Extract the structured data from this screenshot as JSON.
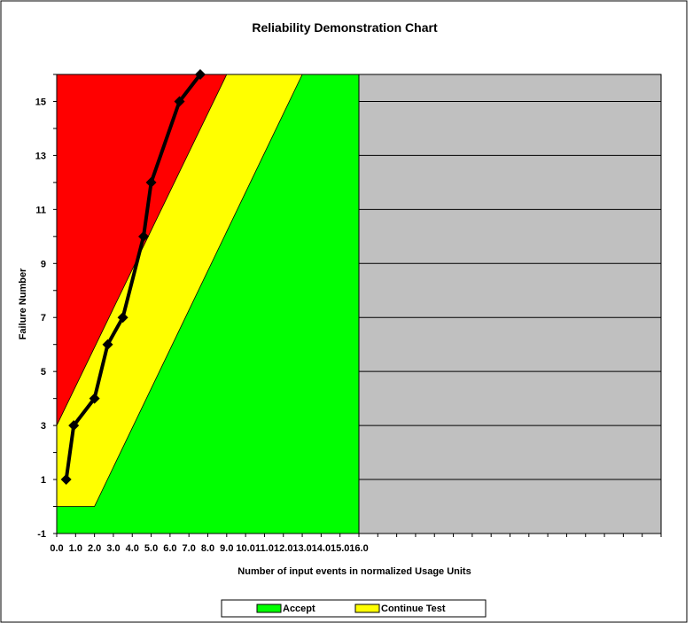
{
  "chart_data": {
    "type": "line",
    "title": "Reliability Demonstration Chart",
    "xlabel": "Number of input events in normalized Usage Units",
    "ylabel": "Failure Number",
    "xlim": [
      0,
      32
    ],
    "ylim": [
      -1,
      16
    ],
    "x_ticks": [
      "0.0",
      "1.0",
      "2.0",
      "3.0",
      "4.0",
      "5.0",
      "6.0",
      "7.0",
      "8.0",
      "9.0",
      "10.0",
      "11.0",
      "12.0",
      "13.0",
      "14.0",
      "15.0",
      "16.0"
    ],
    "y_ticks": [
      "-1",
      "1",
      "3",
      "5",
      "7",
      "9",
      "11",
      "13",
      "15"
    ],
    "regions": {
      "reject_color": "#ff0000",
      "continue_color": "#ffff00",
      "accept_color": "#00ff00",
      "empty_color": "#c0c0c0",
      "plotted_x_max": 16,
      "reject_boundary": [
        [
          0,
          3
        ],
        [
          9,
          16
        ]
      ],
      "accept_boundary": [
        [
          0,
          0
        ],
        [
          2,
          0
        ],
        [
          13,
          16
        ]
      ]
    },
    "series": [
      {
        "x": [
          0.5,
          0.9,
          2.0,
          2.7,
          3.5,
          4.6,
          5.0,
          6.5,
          7.6
        ],
        "y": [
          1,
          3,
          4,
          6,
          7,
          10,
          12,
          15,
          16
        ],
        "color": "#000000"
      }
    ],
    "legend": {
      "position": "bottom",
      "entries": [
        {
          "label": "Accept",
          "color": "#00ff00"
        },
        {
          "label": "Continue Test",
          "color": "#ffff00"
        }
      ]
    }
  }
}
